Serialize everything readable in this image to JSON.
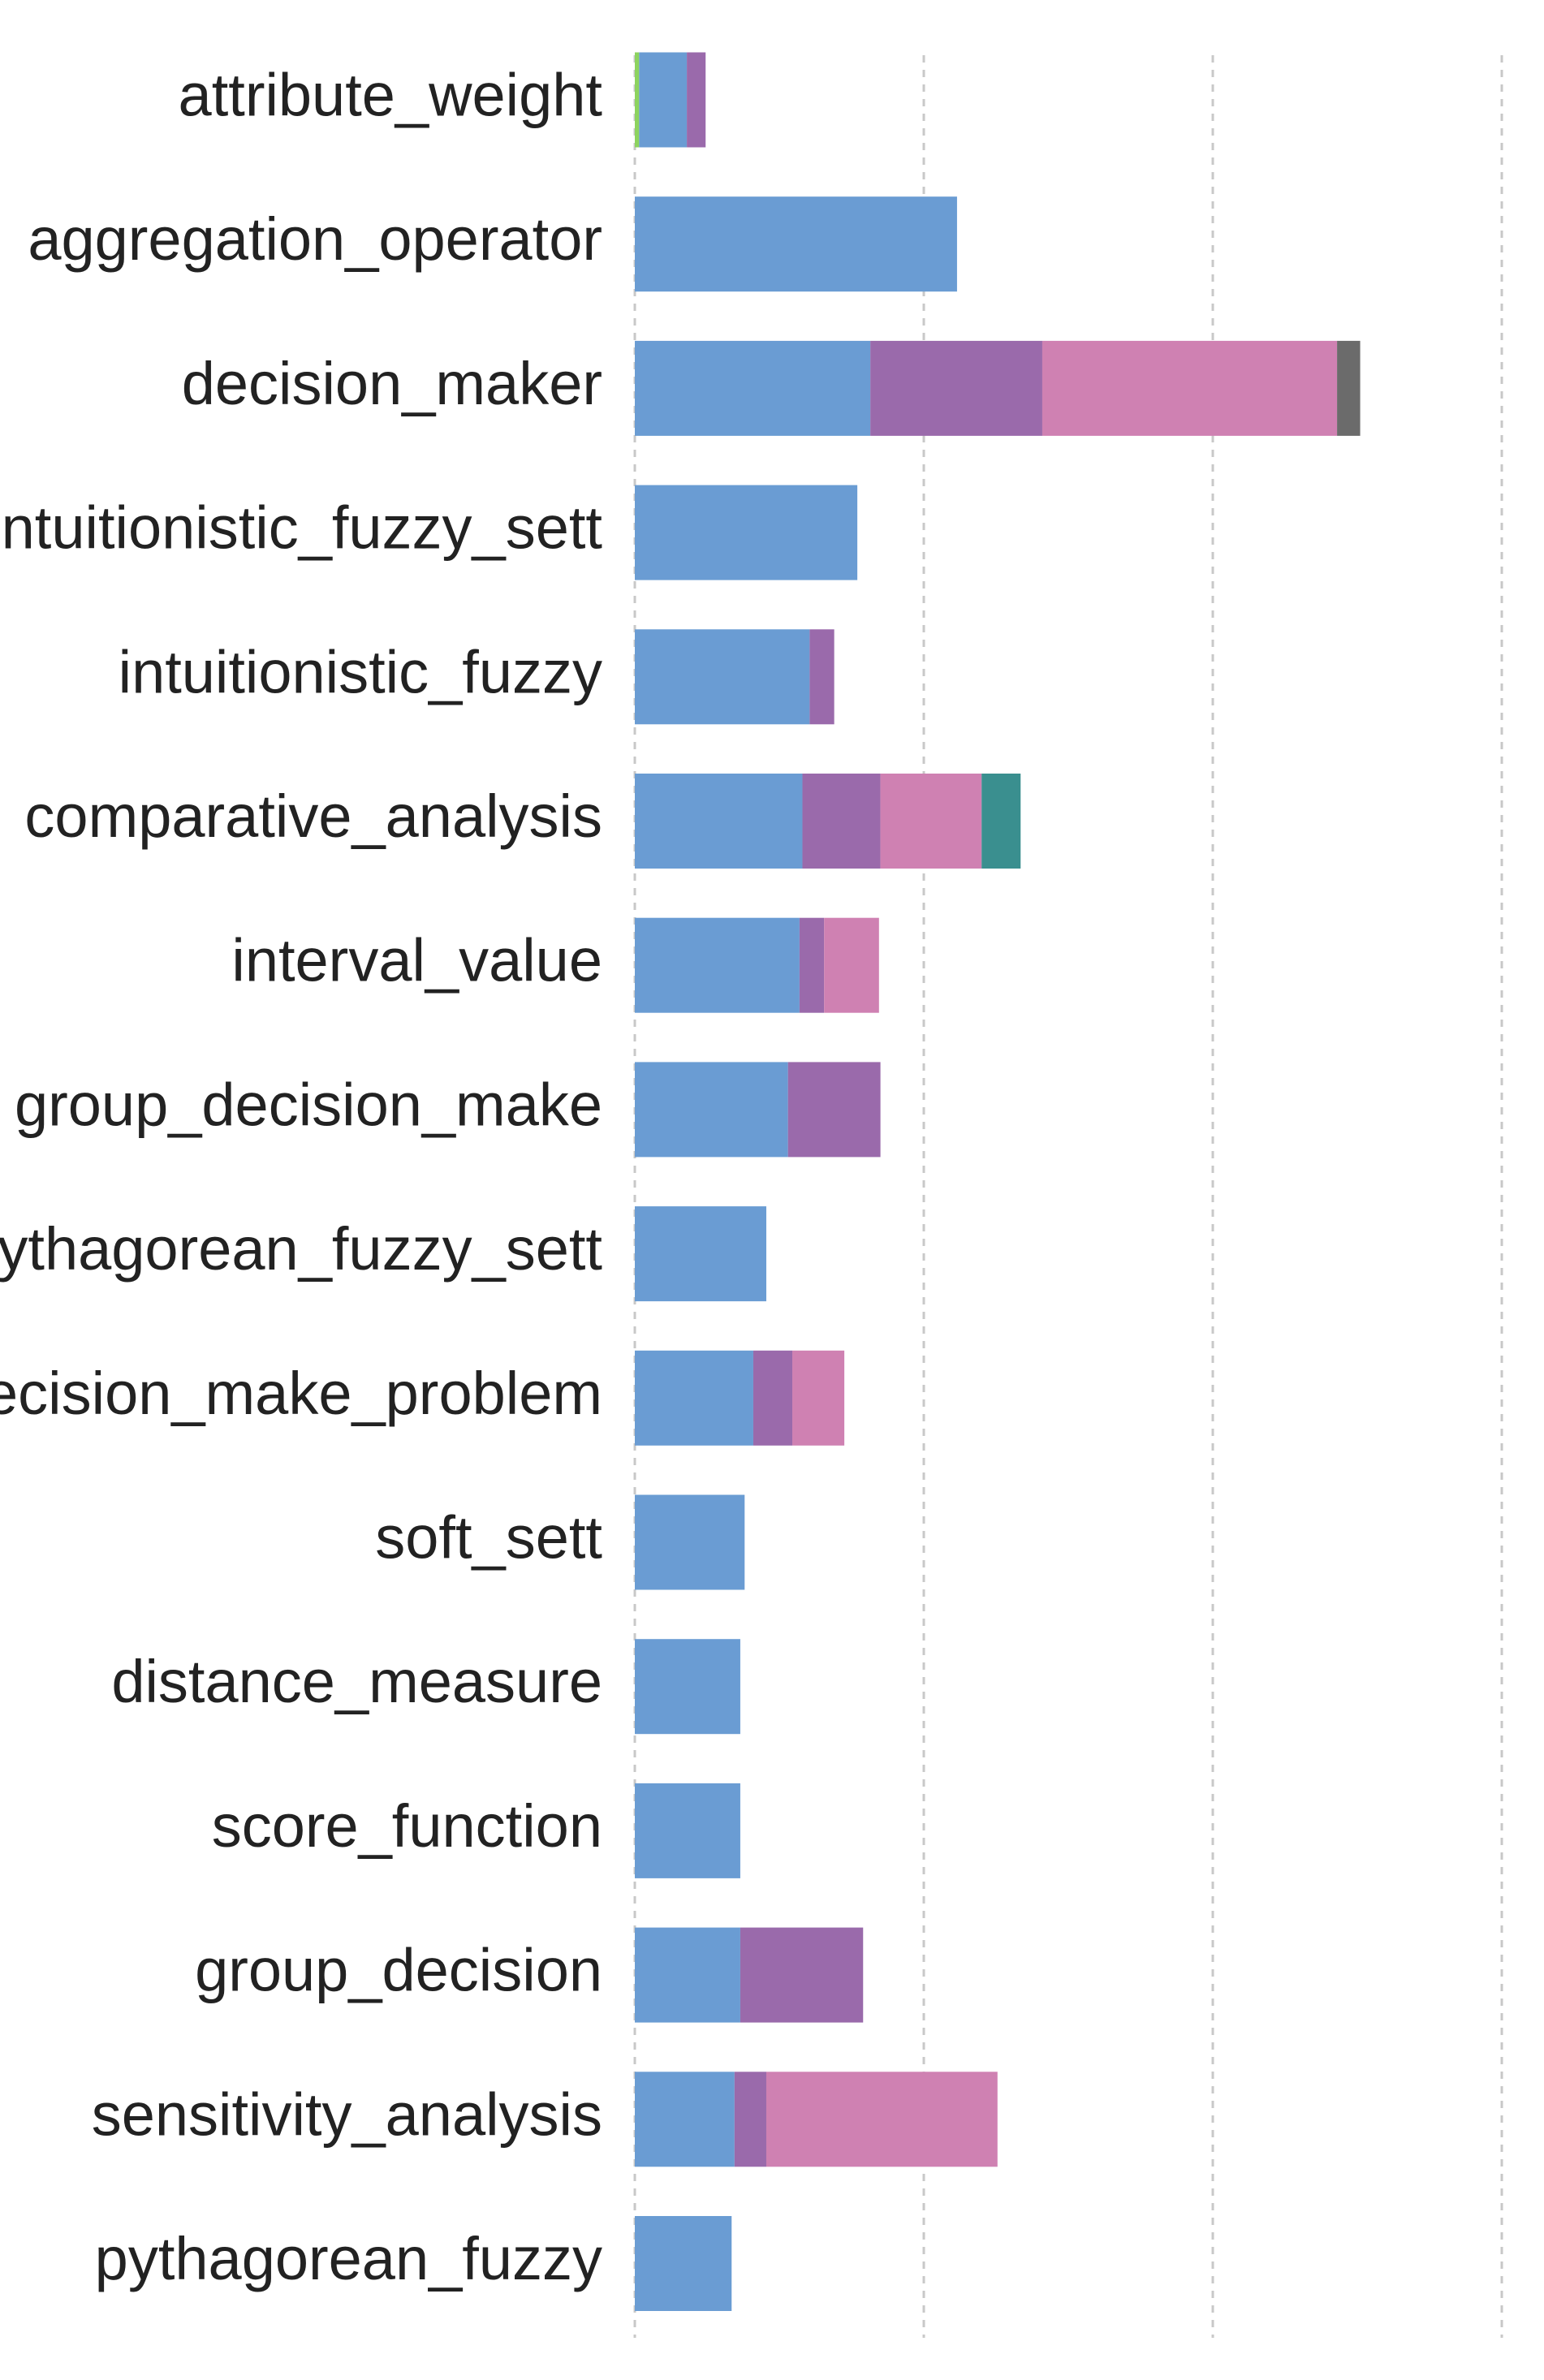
{
  "chart_data": {
    "type": "bar",
    "orientation": "horizontal",
    "stacked": true,
    "title": "",
    "xlabel": "",
    "ylabel": "",
    "xlim": [
      0,
      60
    ],
    "grid": true,
    "legend": "none",
    "categories": [
      "attribute_weight",
      "aggregation_operator",
      "decision_maker",
      "intuitionistic_fuzzy_sett",
      "intuitionistic_fuzzy",
      "comparative_analysis",
      "interval_value",
      "group_decision_make",
      "pythagorean_fuzzy_sett",
      "decision_make_problem",
      "soft_sett",
      "distance_measure",
      "score_function",
      "group_decision",
      "sensitivity_analysis",
      "pythagorean_fuzzy"
    ],
    "series": [
      {
        "color": "#8dd35f",
        "values": [
          0.3,
          0,
          0,
          0,
          0,
          0,
          0,
          0,
          0,
          0,
          0,
          0,
          0,
          0,
          0,
          0
        ]
      },
      {
        "color": "#6a9cd3",
        "values": [
          3.3,
          22.3,
          16.3,
          15.4,
          12.1,
          11.6,
          11.4,
          10.6,
          9.1,
          8.2,
          7.6,
          7.3,
          7.3,
          7.3,
          6.9,
          6.7
        ]
      },
      {
        "color": "#9a6aab",
        "values": [
          1.3,
          0,
          11.9,
          0,
          1.7,
          5.4,
          1.7,
          6.4,
          0,
          2.7,
          0,
          0,
          0,
          8.5,
          2.2,
          0
        ]
      },
      {
        "color": "#cf81b2",
        "values": [
          0,
          0,
          20.4,
          0,
          0,
          7.0,
          3.8,
          0,
          0,
          3.6,
          0,
          0,
          0,
          0,
          16.0,
          0
        ]
      },
      {
        "color": "#3a8f8f",
        "values": [
          0,
          0,
          0,
          0,
          0,
          2.7,
          0,
          0,
          0,
          0,
          0,
          0,
          0,
          0,
          0,
          0
        ]
      },
      {
        "color": "#6b6b6b",
        "values": [
          0,
          0,
          1.6,
          0,
          0,
          0,
          0,
          0,
          0,
          0,
          0,
          0,
          0,
          0,
          0,
          0
        ]
      }
    ]
  }
}
